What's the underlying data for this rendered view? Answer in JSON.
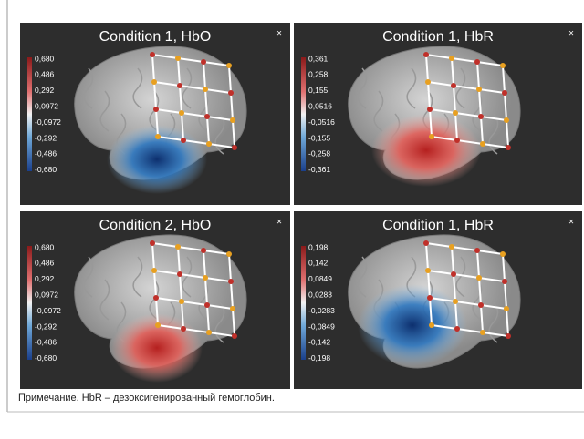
{
  "figure": {
    "panels": [
      {
        "title": "Condition 1, HbO",
        "close": "×",
        "colorbar": [
          "0,680",
          "0,486",
          "0,292",
          "0,0972",
          "-0,0972",
          "-0,292",
          "-0,486",
          "-0,680"
        ]
      },
      {
        "title": "Condition 1, HbR",
        "close": "×",
        "colorbar": [
          "0,361",
          "0,258",
          "0,155",
          "0,0516",
          "-0,0516",
          "-0,155",
          "-0,258",
          "-0,361"
        ]
      },
      {
        "title": "Condition 2, HbO",
        "close": "×",
        "colorbar": [
          "0,680",
          "0,486",
          "0,292",
          "0,0972",
          "-0,0972",
          "-0,292",
          "-0,486",
          "-0,680"
        ]
      },
      {
        "title": "Condition 1, HbR",
        "close": "×",
        "colorbar": [
          "0,198",
          "0,142",
          "0,0849",
          "0,0283",
          "-0,0283",
          "-0,0849",
          "-0,142",
          "-0,198"
        ]
      }
    ]
  },
  "caption": "Примечание. HbR – дезоксигенированный гемоглобин."
}
